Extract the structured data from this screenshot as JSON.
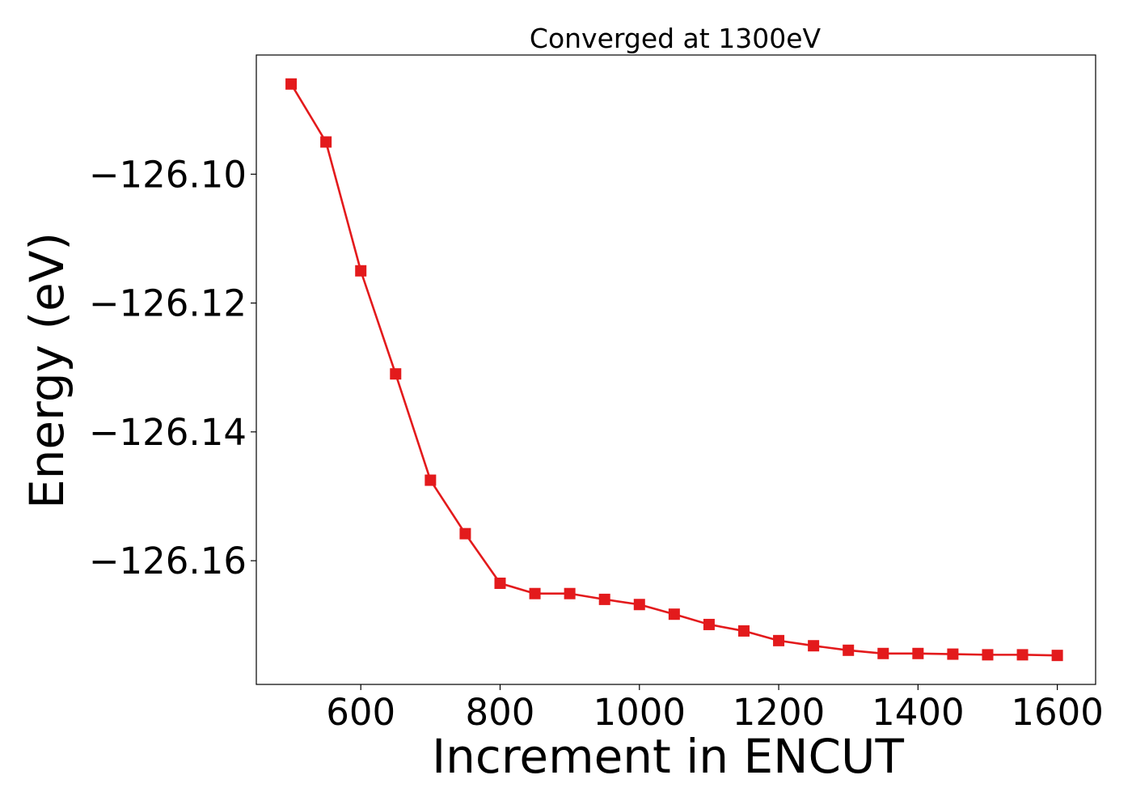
{
  "chart_data": {
    "type": "line",
    "title": "Converged at 1300eV",
    "xlabel": "Increment in ENCUT",
    "ylabel": "Energy (eV)",
    "xlim": [
      450,
      1655
    ],
    "ylim": [
      -126.1792,
      -126.0815
    ],
    "xticks": [
      600,
      800,
      1000,
      1200,
      1400,
      1600
    ],
    "yticks": [
      -126.1,
      -126.12,
      -126.14,
      -126.16
    ],
    "ytick_labels": [
      "−126.10",
      "−126.12",
      "−126.14",
      "−126.16"
    ],
    "grid": false,
    "series": [
      {
        "color": "#e31a1c",
        "marker": "square",
        "x": [
          500,
          550,
          600,
          650,
          700,
          750,
          800,
          850,
          900,
          950,
          1000,
          1050,
          1100,
          1150,
          1200,
          1250,
          1300,
          1350,
          1400,
          1450,
          1500,
          1550,
          1600
        ],
        "y": [
          -126.086,
          -126.095,
          -126.115,
          -126.131,
          -126.1475,
          -126.1558,
          -126.1635,
          -126.1651,
          -126.1651,
          -126.166,
          -126.1668,
          -126.1683,
          -126.1699,
          -126.1709,
          -126.1724,
          -126.1732,
          -126.1739,
          -126.1744,
          -126.1744,
          -126.1745,
          -126.1746,
          -126.1746,
          -126.1747
        ]
      }
    ]
  }
}
